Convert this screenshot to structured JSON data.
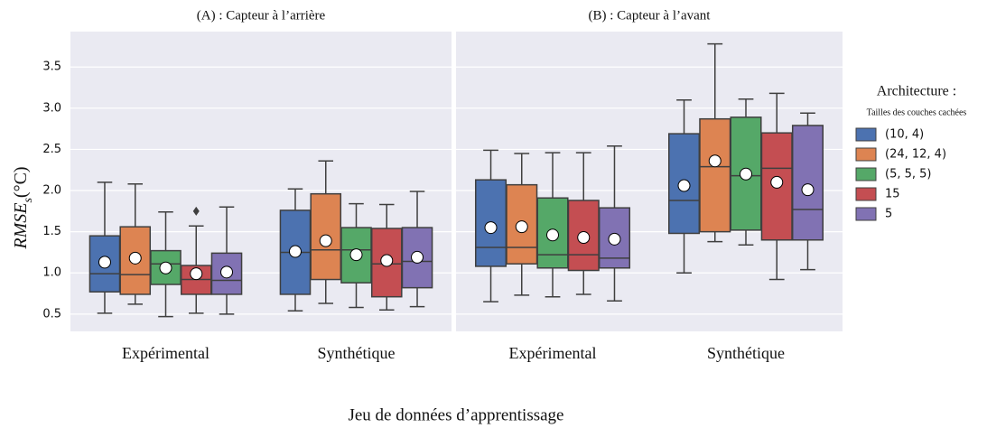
{
  "chart_data": [
    {
      "type": "box",
      "title": "(A) : Capteur à l’arrière",
      "ylabel": "RMSE",
      "ylabel_sub": "s",
      "ylabel_unit": "(°C)",
      "xlabel": "Jeu de données d’apprentissage",
      "legend_title": "Architecture :",
      "legend_subtitle": "Tailles des couches cachées",
      "categories": [
        "Expérimental",
        "Synthétique"
      ],
      "ylim": [
        0.29,
        3.93
      ],
      "yticks": [
        0.5,
        {
          "value": 1,
          "label": "1.0"
        },
        1.5,
        {
          "value": 2,
          "label": "2.0"
        },
        2.5,
        {
          "value": 3,
          "label": "3.0"
        },
        3.5
      ],
      "grid": true,
      "series": [
        {
          "name": "(10, 4)",
          "color": "#4c72b0",
          "whislo": [
            0.51,
            0.54
          ],
          "q1": [
            0.77,
            0.74
          ],
          "median": [
            0.99,
            1.25
          ],
          "q3": [
            1.45,
            1.76
          ],
          "whishi": [
            2.1,
            2.02
          ],
          "mean": [
            1.13,
            1.26
          ],
          "outliers": [
            [],
            []
          ]
        },
        {
          "name": "(24, 12, 4)",
          "color": "#dd8452",
          "whislo": [
            0.62,
            0.63
          ],
          "q1": [
            0.74,
            0.92
          ],
          "median": [
            0.98,
            1.28
          ],
          "q3": [
            1.56,
            1.96
          ],
          "whishi": [
            2.08,
            2.36
          ],
          "mean": [
            1.18,
            1.39
          ],
          "outliers": [
            [],
            []
          ]
        },
        {
          "name": "(5, 5, 5)",
          "color": "#55a868",
          "whislo": [
            0.47,
            0.58
          ],
          "q1": [
            0.86,
            0.88
          ],
          "median": [
            1.11,
            1.28
          ],
          "q3": [
            1.27,
            1.55
          ],
          "whishi": [
            1.74,
            1.84
          ],
          "mean": [
            1.06,
            1.22
          ],
          "outliers": [
            [],
            []
          ]
        },
        {
          "name": "15",
          "color": "#c44e52",
          "whislo": [
            0.51,
            0.55
          ],
          "q1": [
            0.74,
            0.71
          ],
          "median": [
            0.92,
            1.11
          ],
          "q3": [
            1.09,
            1.54
          ],
          "whishi": [
            1.57,
            1.83
          ],
          "mean": [
            0.99,
            1.15
          ],
          "outliers": [
            [
              1.75
            ],
            []
          ]
        },
        {
          "name": "5",
          "color": "#8172b3",
          "whislo": [
            0.5,
            0.59
          ],
          "q1": [
            0.74,
            0.82
          ],
          "median": [
            0.91,
            1.14
          ],
          "q3": [
            1.24,
            1.55
          ],
          "whishi": [
            1.8,
            1.99
          ],
          "mean": [
            1.01,
            1.19
          ],
          "outliers": [
            [],
            []
          ]
        }
      ]
    },
    {
      "type": "box",
      "title": "(B) : Capteur à l’avant",
      "categories": [
        "Expérimental",
        "Synthétique"
      ],
      "ylim": [
        0.29,
        3.93
      ],
      "yticks": [
        0.5,
        1,
        1.5,
        2,
        2.5,
        3,
        3.5
      ],
      "grid": true,
      "series": [
        {
          "color": "#4c72b0",
          "whislo": [
            0.65,
            1.0
          ],
          "q1": [
            1.08,
            1.48
          ],
          "median": [
            1.31,
            1.88
          ],
          "q3": [
            2.13,
            2.69
          ],
          "whishi": [
            2.49,
            3.1
          ],
          "mean": [
            1.55,
            2.06
          ],
          "outliers": [
            [],
            []
          ]
        },
        {
          "color": "#dd8452",
          "whislo": [
            0.73,
            1.38
          ],
          "q1": [
            1.11,
            1.5
          ],
          "median": [
            1.31,
            2.29
          ],
          "q3": [
            2.07,
            2.87
          ],
          "whishi": [
            2.45,
            3.78
          ],
          "mean": [
            1.56,
            2.36
          ],
          "outliers": [
            [],
            []
          ]
        },
        {
          "color": "#55a868",
          "whislo": [
            0.71,
            1.34
          ],
          "q1": [
            1.06,
            1.52
          ],
          "median": [
            1.22,
            2.18
          ],
          "q3": [
            1.91,
            2.89
          ],
          "whishi": [
            2.46,
            3.11
          ],
          "mean": [
            1.46,
            2.2
          ],
          "outliers": [
            [],
            []
          ]
        },
        {
          "color": "#c44e52",
          "whislo": [
            0.74,
            0.92
          ],
          "q1": [
            1.03,
            1.4
          ],
          "median": [
            1.22,
            2.27
          ],
          "q3": [
            1.88,
            2.7
          ],
          "whishi": [
            2.46,
            3.18
          ],
          "mean": [
            1.43,
            2.1
          ],
          "outliers": [
            [],
            []
          ]
        },
        {
          "color": "#8172b3",
          "whislo": [
            0.66,
            1.04
          ],
          "q1": [
            1.06,
            1.4
          ],
          "median": [
            1.18,
            1.77
          ],
          "q3": [
            1.79,
            2.79
          ],
          "whishi": [
            2.54,
            2.94
          ],
          "mean": [
            1.41,
            2.01
          ],
          "outliers": [
            [],
            []
          ]
        }
      ]
    }
  ]
}
